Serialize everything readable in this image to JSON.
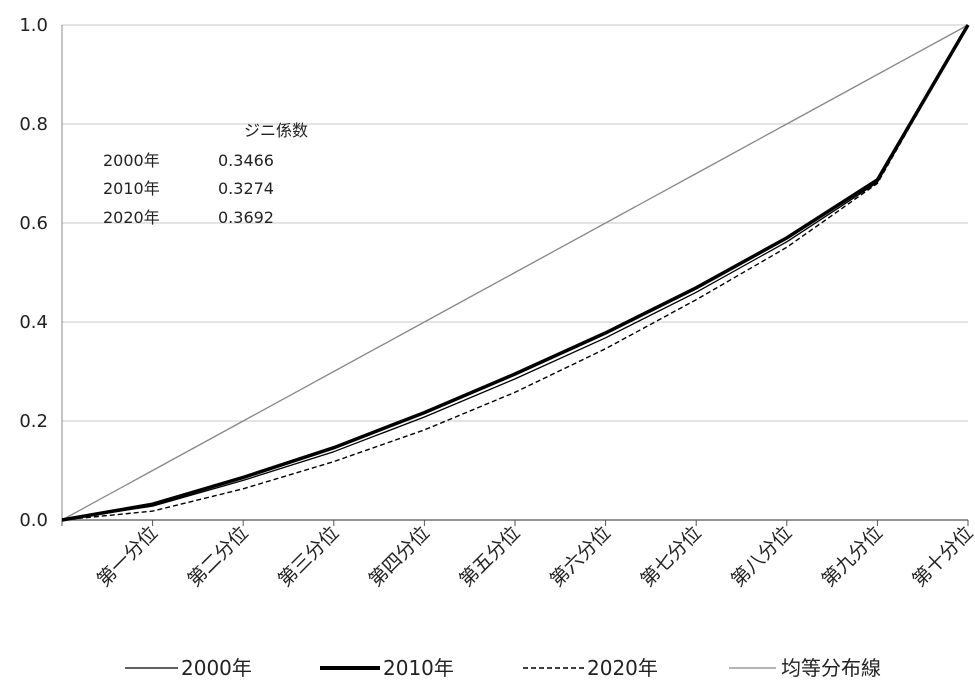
{
  "chart_data": {
    "type": "line",
    "categories": [
      "第一分位",
      "第二分位",
      "第三分位",
      "第四分位",
      "第五分位",
      "第六分位",
      "第七分位",
      "第八分位",
      "第九分位",
      "第十分位"
    ],
    "x": [
      0,
      1,
      2,
      3,
      4,
      5,
      6,
      7,
      8,
      9,
      10
    ],
    "ylim": [
      0,
      1.0
    ],
    "yticks": [
      "0.0",
      "0.2",
      "0.4",
      "0.6",
      "0.8",
      "1.0"
    ],
    "grid": true,
    "legend_position": "bottom",
    "series": [
      {
        "name": "2000年",
        "style": "thin-solid",
        "color": "#000000",
        "values": [
          0.0,
          0.028,
          0.08,
          0.138,
          0.208,
          0.285,
          0.368,
          0.46,
          0.562,
          0.682,
          1.0
        ]
      },
      {
        "name": "2010年",
        "style": "thick-solid",
        "color": "#000000",
        "values": [
          0.0,
          0.032,
          0.086,
          0.146,
          0.217,
          0.295,
          0.378,
          0.469,
          0.57,
          0.687,
          1.0
        ]
      },
      {
        "name": "2020年",
        "style": "dashed",
        "color": "#000000",
        "values": [
          0.0,
          0.018,
          0.063,
          0.118,
          0.182,
          0.258,
          0.346,
          0.445,
          0.551,
          0.68,
          1.0
        ]
      },
      {
        "name": "均等分布線",
        "style": "thin-gray",
        "color": "#888888",
        "values": [
          0.0,
          0.1,
          0.2,
          0.3,
          0.4,
          0.5,
          0.6,
          0.7,
          0.8,
          0.9,
          1.0
        ]
      }
    ],
    "annotation": {
      "header": "ジニ係数",
      "rows": [
        {
          "year": "2000年",
          "value": "0.3466"
        },
        {
          "year": "2010年",
          "value": "0.3274"
        },
        {
          "year": "2020年",
          "value": "0.3692"
        }
      ]
    }
  }
}
